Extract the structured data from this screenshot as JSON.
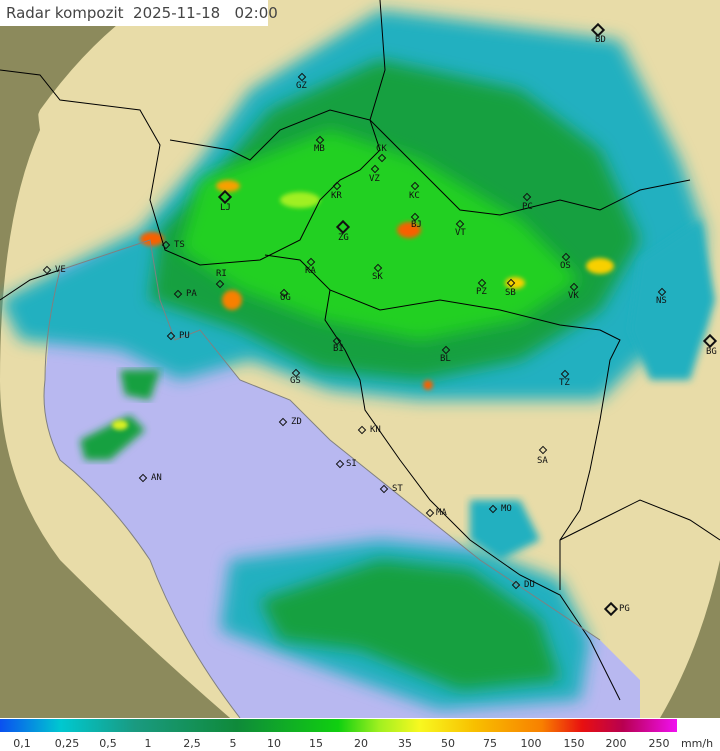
{
  "header": {
    "title": "Radar kompozit",
    "date": "2025-11-18",
    "time": "02:00"
  },
  "legend": {
    "unit": "mm/h",
    "ticks": [
      "0,1",
      "0,25",
      "0,5",
      "1",
      "2,5",
      "5",
      "10",
      "15",
      "20",
      "35",
      "50",
      "75",
      "100",
      "150",
      "200",
      "250"
    ],
    "colors": [
      "#0a50f0",
      "#00c8d0",
      "#1a9a80",
      "#0f8a3a",
      "#10d010",
      "#f8f820",
      "#f8c000",
      "#f88000",
      "#e81010",
      "#b80050",
      "#f010f0"
    ]
  },
  "map": {
    "colors": {
      "sea": "#b8b8f0",
      "land": "#e8dca8",
      "outside_coverage": "#8c8a5c",
      "borders": "#000000",
      "coastline": "#808080"
    },
    "cities": [
      {
        "code": "GZ",
        "major": false
      },
      {
        "code": "BD",
        "major": true
      },
      {
        "code": "MB",
        "major": false
      },
      {
        "code": "CK",
        "major": false
      },
      {
        "code": "VZ",
        "major": false
      },
      {
        "code": "KR",
        "major": false
      },
      {
        "code": "KC",
        "major": false
      },
      {
        "code": "LJ",
        "major": true
      },
      {
        "code": "BJ",
        "major": false
      },
      {
        "code": "ZG",
        "major": true
      },
      {
        "code": "VT",
        "major": false
      },
      {
        "code": "PC",
        "major": false
      },
      {
        "code": "TS",
        "major": false
      },
      {
        "code": "VE",
        "major": false
      },
      {
        "code": "RI",
        "major": false
      },
      {
        "code": "KA",
        "major": false
      },
      {
        "code": "SK",
        "major": false
      },
      {
        "code": "OS",
        "major": false
      },
      {
        "code": "PA",
        "major": false
      },
      {
        "code": "OG",
        "major": false
      },
      {
        "code": "PZ",
        "major": false
      },
      {
        "code": "SB",
        "major": false
      },
      {
        "code": "VK",
        "major": false
      },
      {
        "code": "NS",
        "major": false
      },
      {
        "code": "PU",
        "major": false
      },
      {
        "code": "BI",
        "major": false
      },
      {
        "code": "BL",
        "major": false
      },
      {
        "code": "BG",
        "major": true
      },
      {
        "code": "GS",
        "major": false
      },
      {
        "code": "TZ",
        "major": false
      },
      {
        "code": "ZD",
        "major": false
      },
      {
        "code": "KN",
        "major": false
      },
      {
        "code": "SA",
        "major": false
      },
      {
        "code": "AN",
        "major": false
      },
      {
        "code": "SI",
        "major": false
      },
      {
        "code": "ST",
        "major": false
      },
      {
        "code": "MA",
        "major": false
      },
      {
        "code": "MO",
        "major": false
      },
      {
        "code": "DU",
        "major": false
      },
      {
        "code": "PG",
        "major": true
      }
    ]
  }
}
